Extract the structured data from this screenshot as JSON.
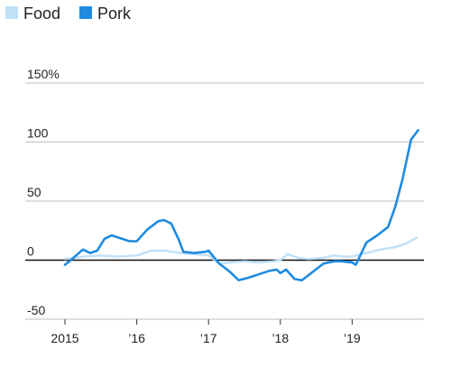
{
  "chart_data": {
    "type": "line",
    "title": "",
    "xlabel": "",
    "ylabel": "",
    "ylim": [
      -50,
      150
    ],
    "y_unit_suffix": "%",
    "y_ticks": [
      {
        "value": 150,
        "label": "150%"
      },
      {
        "value": 100,
        "label": "100"
      },
      {
        "value": 50,
        "label": "50"
      },
      {
        "value": 0,
        "label": "0"
      },
      {
        "value": -50,
        "label": "-50"
      }
    ],
    "x_ticks": [
      {
        "value": 2015.0,
        "label": "2015"
      },
      {
        "value": 2016.0,
        "label": "’16"
      },
      {
        "value": 2017.0,
        "label": "’17"
      },
      {
        "value": 2018.0,
        "label": "’18"
      },
      {
        "value": 2019.0,
        "label": "’19"
      }
    ],
    "xlim": [
      2015.0,
      2019.95
    ],
    "grid": true,
    "legend_position": "top-left",
    "series": [
      {
        "name": "Food",
        "color": "#bfe0f7",
        "points": [
          [
            2015.0,
            1
          ],
          [
            2015.25,
            3
          ],
          [
            2015.5,
            4
          ],
          [
            2015.75,
            3
          ],
          [
            2016.0,
            4
          ],
          [
            2016.2,
            8
          ],
          [
            2016.4,
            8
          ],
          [
            2016.6,
            6
          ],
          [
            2016.8,
            5
          ],
          [
            2017.0,
            4
          ],
          [
            2017.15,
            -3
          ],
          [
            2017.3,
            -2
          ],
          [
            2017.5,
            -1
          ],
          [
            2017.7,
            -2
          ],
          [
            2017.9,
            -1
          ],
          [
            2018.0,
            0
          ],
          [
            2018.1,
            5
          ],
          [
            2018.25,
            2
          ],
          [
            2018.4,
            1
          ],
          [
            2018.6,
            2
          ],
          [
            2018.75,
            4
          ],
          [
            2018.9,
            3
          ],
          [
            2019.0,
            3
          ],
          [
            2019.2,
            6
          ],
          [
            2019.4,
            9
          ],
          [
            2019.6,
            11
          ],
          [
            2019.75,
            14
          ],
          [
            2019.9,
            19
          ]
        ]
      },
      {
        "name": "Pork",
        "color": "#1f8be0",
        "points": [
          [
            2015.0,
            -4
          ],
          [
            2015.1,
            1
          ],
          [
            2015.25,
            9
          ],
          [
            2015.35,
            6
          ],
          [
            2015.45,
            8
          ],
          [
            2015.55,
            18
          ],
          [
            2015.65,
            21
          ],
          [
            2015.75,
            19
          ],
          [
            2015.9,
            16
          ],
          [
            2016.0,
            16
          ],
          [
            2016.15,
            26
          ],
          [
            2016.3,
            33
          ],
          [
            2016.38,
            34
          ],
          [
            2016.48,
            31
          ],
          [
            2016.58,
            18
          ],
          [
            2016.65,
            7
          ],
          [
            2016.8,
            6
          ],
          [
            2016.95,
            7
          ],
          [
            2017.0,
            8
          ],
          [
            2017.15,
            -3
          ],
          [
            2017.3,
            -10
          ],
          [
            2017.42,
            -17
          ],
          [
            2017.55,
            -15
          ],
          [
            2017.7,
            -12
          ],
          [
            2017.85,
            -9
          ],
          [
            2017.95,
            -8
          ],
          [
            2018.0,
            -11
          ],
          [
            2018.08,
            -8
          ],
          [
            2018.2,
            -16
          ],
          [
            2018.3,
            -17
          ],
          [
            2018.45,
            -10
          ],
          [
            2018.6,
            -3
          ],
          [
            2018.75,
            -1
          ],
          [
            2018.85,
            -1
          ],
          [
            2019.0,
            -2
          ],
          [
            2019.05,
            -4
          ],
          [
            2019.2,
            15
          ],
          [
            2019.35,
            21
          ],
          [
            2019.5,
            28
          ],
          [
            2019.6,
            45
          ],
          [
            2019.7,
            68
          ],
          [
            2019.82,
            102
          ],
          [
            2019.92,
            110
          ]
        ]
      }
    ]
  }
}
